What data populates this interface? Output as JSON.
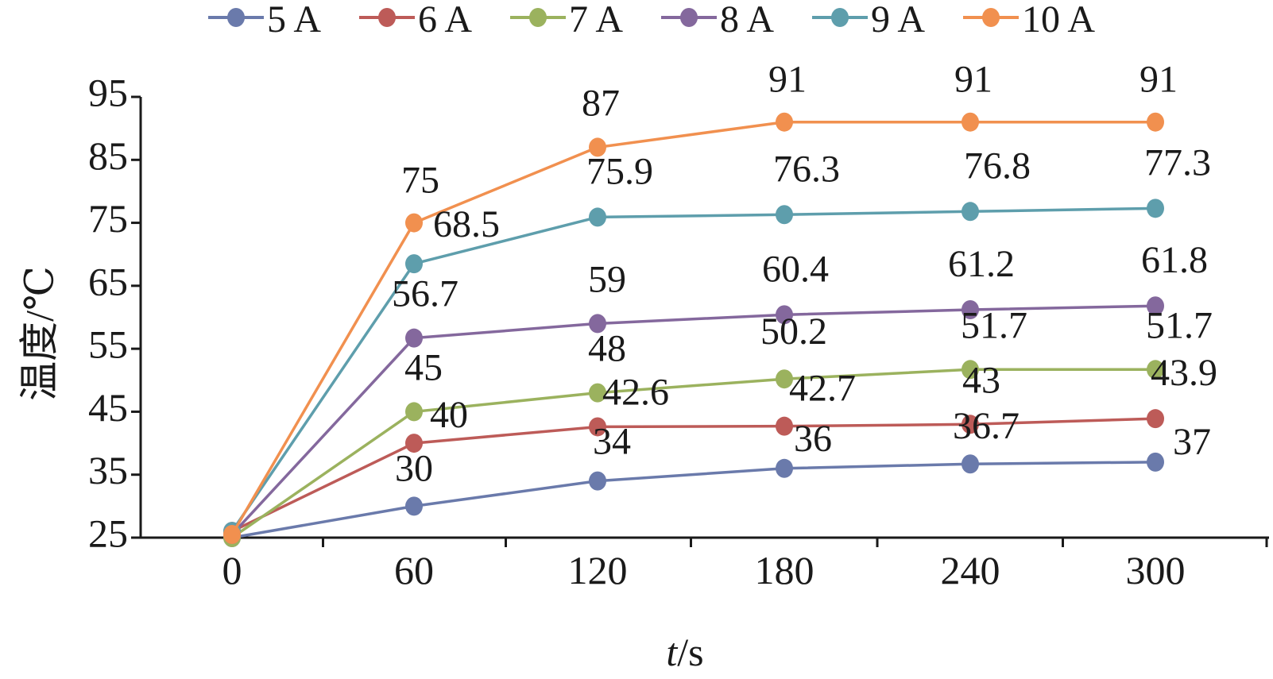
{
  "chart_data": {
    "type": "line",
    "x": [
      0,
      60,
      120,
      180,
      240,
      300
    ],
    "xlabel_var": "t",
    "xlabel_unit": "/s",
    "ylabel": "温度/℃",
    "ylim": [
      25,
      95
    ],
    "yticks": [
      25,
      35,
      45,
      55,
      65,
      75,
      85,
      95
    ],
    "grid": false,
    "legend_position": "top",
    "series": [
      {
        "name": "5 A",
        "color": "#6a7aab",
        "values": [
          25,
          30,
          34,
          36,
          36.7,
          37
        ],
        "labels": [
          "",
          "30",
          "34",
          "36",
          "36.7",
          "37"
        ]
      },
      {
        "name": "6 A",
        "color": "#bd5b58",
        "values": [
          26,
          40,
          42.6,
          42.7,
          43,
          43.9
        ],
        "labels": [
          "",
          "40",
          "42.6",
          "42.7",
          "43",
          "43.9"
        ]
      },
      {
        "name": "7 A",
        "color": "#9bb25e",
        "values": [
          25,
          45,
          48,
          50.2,
          51.7,
          51.7
        ],
        "labels": [
          "",
          "45",
          "48",
          "50.2",
          "51.7",
          "51.7"
        ]
      },
      {
        "name": "8 A",
        "color": "#84689d",
        "values": [
          25.5,
          56.7,
          59,
          60.4,
          61.2,
          61.8
        ],
        "labels": [
          "",
          "56.7",
          "59",
          "60.4",
          "61.2",
          "61.8"
        ]
      },
      {
        "name": "9 A",
        "color": "#5e9eac",
        "values": [
          26,
          68.5,
          75.9,
          76.3,
          76.8,
          77.3
        ],
        "labels": [
          "",
          "68.5",
          "75.9",
          "76.3",
          "76.8",
          "77.3"
        ]
      },
      {
        "name": "10 A",
        "color": "#f1904f",
        "values": [
          25.5,
          75,
          87,
          91,
          91,
          91
        ],
        "labels": [
          "",
          "75",
          "87",
          "91",
          "91",
          "91"
        ]
      }
    ]
  }
}
